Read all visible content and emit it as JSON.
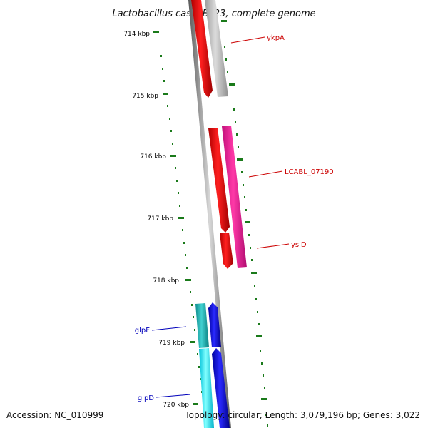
{
  "title": "Lactobacillus casei BL23, complete genome",
  "accession": "Accession: NC_010999",
  "genome_stats": "Topology: circular; Length: 3,079,196 bp; Genes: 3,022",
  "colors": {
    "backbone": "#8c8c8c",
    "tick": "#1a7a1a",
    "label_red": "#cc0000",
    "label_blue": "#0000bb"
  },
  "ticks": [
    {
      "label": "714 kbp"
    },
    {
      "label": "715 kbp"
    },
    {
      "label": "716 kbp"
    },
    {
      "label": "717 kbp"
    },
    {
      "label": "718 kbp"
    },
    {
      "label": "719 kbp"
    },
    {
      "label": "720 kbp"
    }
  ],
  "genes": [
    {
      "name": "ykpA",
      "color": "#bfbfbf"
    },
    {
      "name": "LCABL_07190",
      "color": "#ff1493"
    },
    {
      "name": "ysiD",
      "color": "#ff0000"
    },
    {
      "name": "glpF",
      "color": "#20c0c0"
    },
    {
      "name": "glpD",
      "color": "#00e8ff"
    }
  ]
}
